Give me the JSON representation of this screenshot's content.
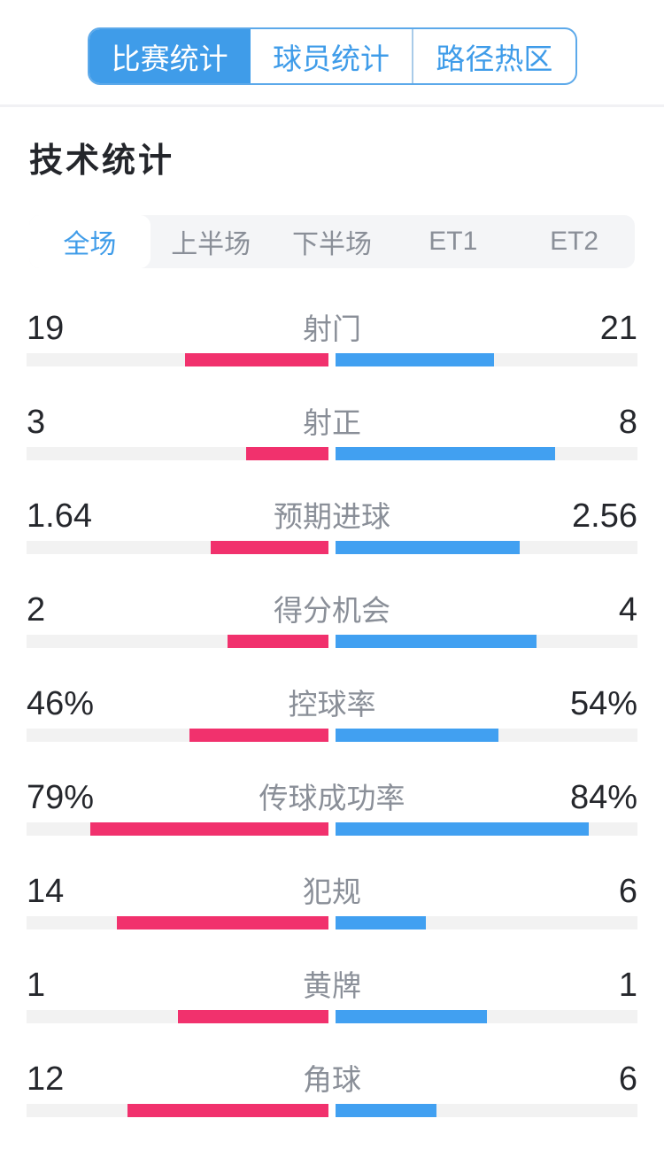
{
  "colors": {
    "accent_blue": "#3F9CE9",
    "bar_blue": "#41A0F1",
    "bar_pink": "#F1316D",
    "bar_track": "#F2F2F2",
    "label_gray": "#8A8F98",
    "value_dark": "#25272C",
    "period_bar_bg": "#F4F5F7"
  },
  "top_tabs": {
    "items": [
      {
        "label": "比赛统计",
        "active": true
      },
      {
        "label": "球员统计",
        "active": false
      },
      {
        "label": "路径热区",
        "active": false
      }
    ]
  },
  "section": {
    "title": "技术统计"
  },
  "period_tabs": {
    "items": [
      {
        "label": "全场",
        "active": true
      },
      {
        "label": "上半场",
        "active": false
      },
      {
        "label": "下半场",
        "active": false
      },
      {
        "label": "ET1",
        "active": false
      },
      {
        "label": "ET2",
        "active": false
      }
    ]
  },
  "chart_data": {
    "type": "bar",
    "orientation": "mirrored-horizontal",
    "title": "技术统计",
    "period": "全场",
    "left_series_color": "#F1316D",
    "right_series_color": "#41A0F1",
    "rows": [
      {
        "label": "射门",
        "left": "19",
        "right": "21",
        "left_pct": 47.5,
        "right_pct": 52.5
      },
      {
        "label": "射正",
        "left": "3",
        "right": "8",
        "left_pct": 27.3,
        "right_pct": 72.7
      },
      {
        "label": "预期进球",
        "left": "1.64",
        "right": "2.56",
        "left_pct": 39.0,
        "right_pct": 61.0
      },
      {
        "label": "得分机会",
        "left": "2",
        "right": "4",
        "left_pct": 33.3,
        "right_pct": 66.7
      },
      {
        "label": "控球率",
        "left": "46%",
        "right": "54%",
        "left_pct": 46.0,
        "right_pct": 54.0
      },
      {
        "label": "传球成功率",
        "left": "79%",
        "right": "84%",
        "left_pct": 79.0,
        "right_pct": 84.0
      },
      {
        "label": "犯规",
        "left": "14",
        "right": "6",
        "left_pct": 70.0,
        "right_pct": 30.0
      },
      {
        "label": "黄牌",
        "left": "1",
        "right": "1",
        "left_pct": 50.0,
        "right_pct": 50.0
      },
      {
        "label": "角球",
        "left": "12",
        "right": "6",
        "left_pct": 66.7,
        "right_pct": 33.3
      }
    ]
  }
}
